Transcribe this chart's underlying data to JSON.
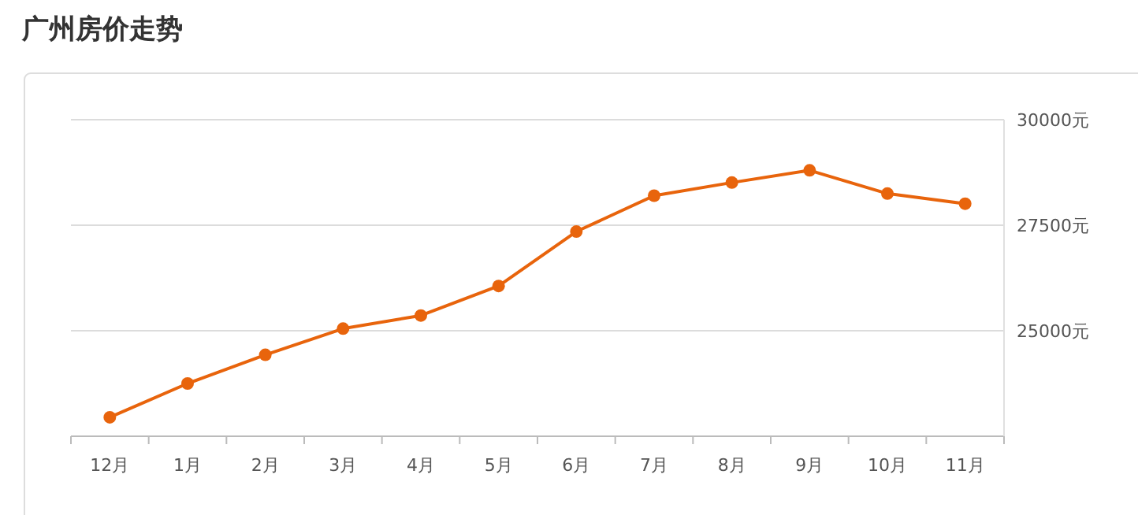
{
  "chart_data": {
    "type": "line",
    "title": "广州房价走势",
    "categories": [
      "12月",
      "1月",
      "2月",
      "3月",
      "4月",
      "5月",
      "6月",
      "7月",
      "8月",
      "9月",
      "10月",
      "11月"
    ],
    "series": [
      {
        "color": "#e8640c",
        "values": [
          22950,
          23750,
          24430,
          25050,
          25360,
          26060,
          27350,
          28200,
          28510,
          28800,
          28250,
          28010
        ]
      }
    ],
    "ylim": [
      22500,
      30000
    ],
    "yticks": [
      {
        "value": 25000,
        "label": "25000元"
      },
      {
        "value": 27500,
        "label": "27500元"
      },
      {
        "value": 30000,
        "label": "30000元"
      }
    ],
    "grid": "y",
    "marker": "circle",
    "line_style": "solid"
  }
}
